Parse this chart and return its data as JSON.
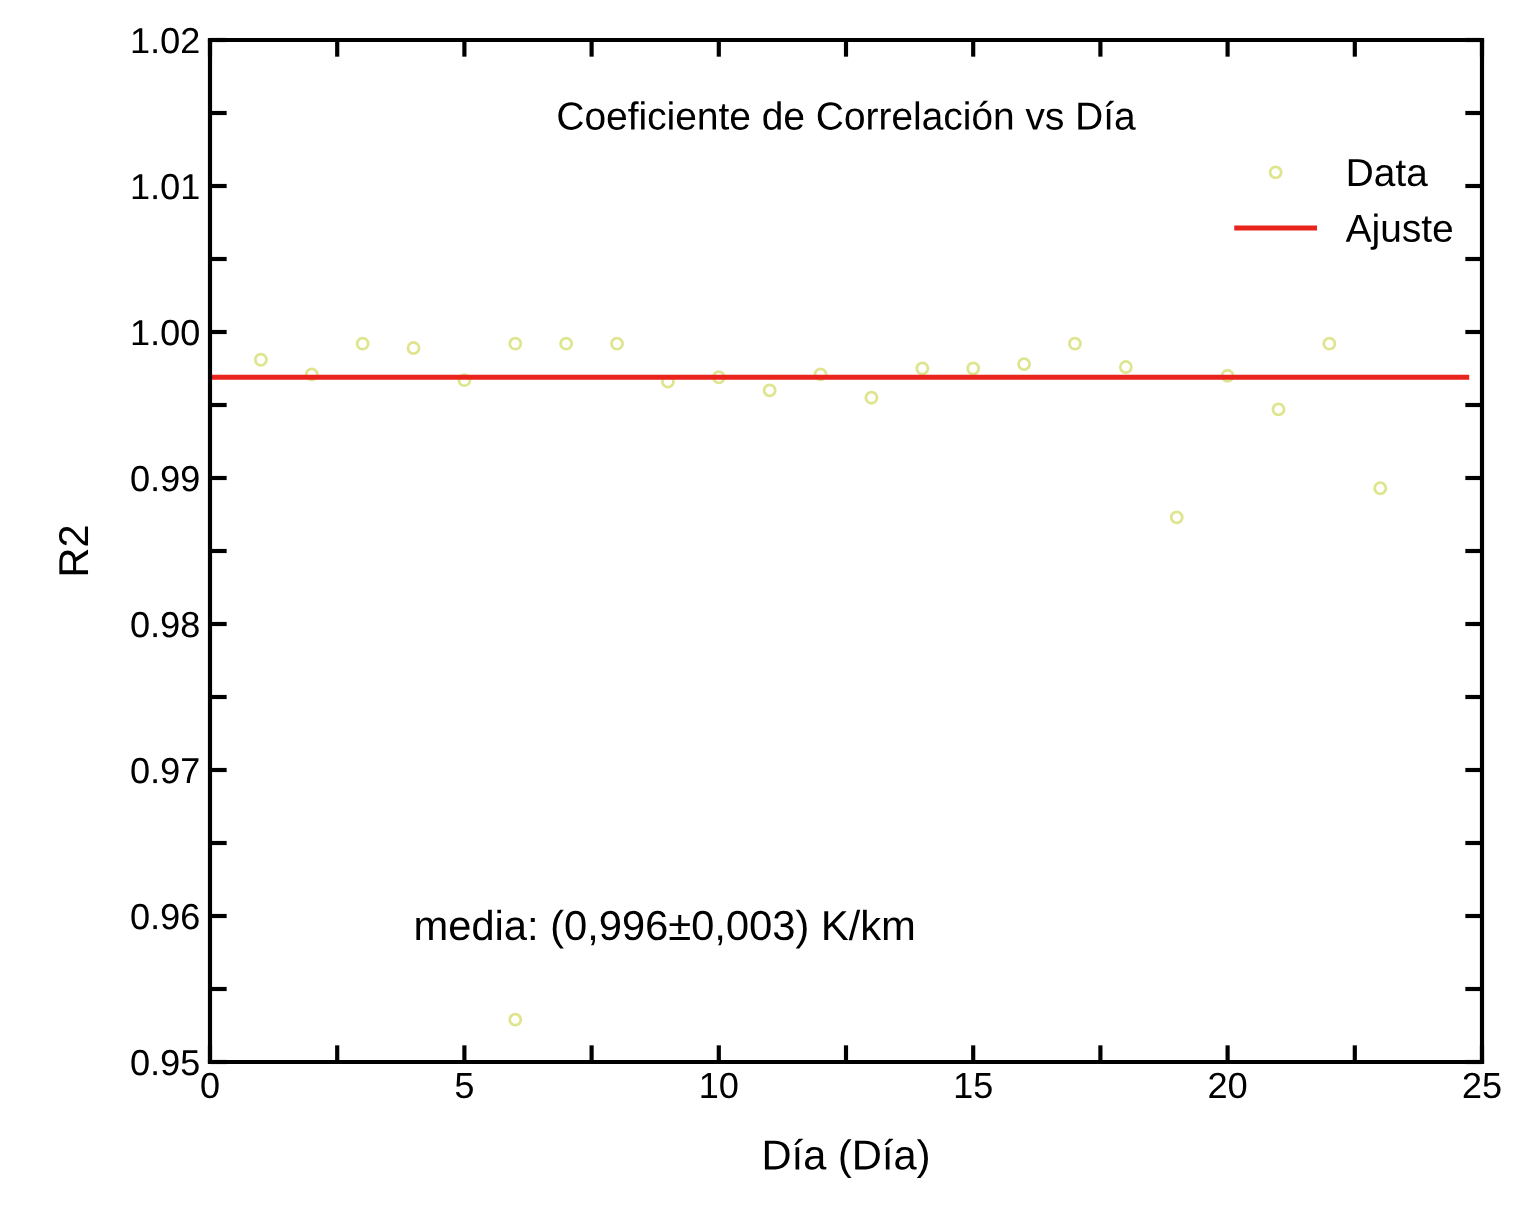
{
  "chart_data": {
    "type": "scatter",
    "title": "Coeficiente de Correlación vs Día",
    "xlabel": "Día (Día)",
    "ylabel": "R2",
    "annotations": [
      "media: (0,996±0,003) K/km"
    ],
    "xlim": [
      0,
      25
    ],
    "ylim": [
      0.95,
      1.02
    ],
    "xticks": [
      0,
      {
        "value": 2.5,
        "label": null
      },
      5,
      {
        "value": 7.5,
        "label": null
      },
      10,
      {
        "value": 12.5,
        "label": null
      },
      15,
      {
        "value": 17.5,
        "label": null
      },
      20,
      {
        "value": 22.5,
        "label": null
      },
      25
    ],
    "yticks": [
      {
        "value": 0.95,
        "label": "0.95"
      },
      {
        "value": 0.955,
        "label": null
      },
      {
        "value": 0.96,
        "label": "0.96"
      },
      {
        "value": 0.965,
        "label": null
      },
      {
        "value": 0.97,
        "label": "0.97"
      },
      {
        "value": 0.975,
        "label": null
      },
      {
        "value": 0.98,
        "label": "0.98"
      },
      {
        "value": 0.985,
        "label": null
      },
      {
        "value": 0.99,
        "label": "0.99"
      },
      {
        "value": 0.995,
        "label": null
      },
      {
        "value": 1.0,
        "label": "1.00"
      },
      {
        "value": 1.005,
        "label": null
      },
      {
        "value": 1.01,
        "label": "1.01"
      },
      {
        "value": 1.015,
        "label": null
      },
      {
        "value": 1.02,
        "label": "1.02"
      }
    ],
    "grid": false,
    "legend": "top right",
    "marker": "circle",
    "series": [
      {
        "name": "Data",
        "color": "#dfe58f",
        "x": [
          1,
          2,
          3,
          4,
          5,
          6,
          6,
          7,
          8,
          9,
          10,
          11,
          12,
          13,
          14,
          15,
          16,
          17,
          18,
          19,
          20,
          21,
          22,
          23
        ],
        "values": [
          0.9981,
          0.9971,
          0.9992,
          0.9989,
          0.9967,
          0.9992,
          0.9529,
          0.9992,
          0.9992,
          0.9966,
          0.9969,
          0.996,
          0.9971,
          0.9955,
          0.9975,
          0.9975,
          0.9978,
          0.9992,
          0.9976,
          0.9873,
          0.997,
          0.9947,
          0.9992,
          0.9893
        ]
      },
      {
        "name": "Ajuste",
        "type": "line",
        "color": "#e8241c",
        "x": [
          0,
          24.7
        ],
        "values": [
          0.9969,
          0.9969
        ],
        "marker": "none"
      }
    ]
  }
}
